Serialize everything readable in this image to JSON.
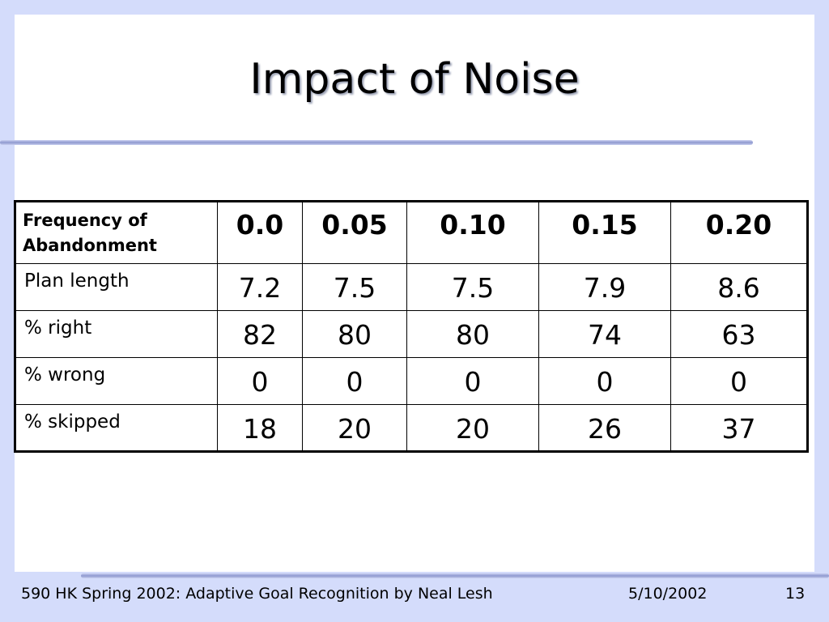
{
  "slide": {
    "title": "Impact of Noise"
  },
  "table": {
    "header_label": "Frequency of Abandonment",
    "columns": [
      "0.0",
      "0.05",
      "0.10",
      "0.15",
      "0.20"
    ],
    "rows": [
      {
        "label": "Plan length",
        "values": [
          "7.2",
          "7.5",
          "7.5",
          "7.9",
          "8.6"
        ]
      },
      {
        "label": "% right",
        "values": [
          "82",
          "80",
          "80",
          "74",
          "63"
        ]
      },
      {
        "label": "% wrong",
        "values": [
          "0",
          "0",
          "0",
          "0",
          "0"
        ]
      },
      {
        "label": "% skipped",
        "values": [
          "18",
          "20",
          "20",
          "26",
          "37"
        ]
      }
    ]
  },
  "footer": {
    "text": "590 HK Spring 2002: Adaptive Goal Recognition by Neal Lesh",
    "date": "5/10/2002",
    "page_number": "13"
  },
  "colors": {
    "page_background": "#d4dcfb",
    "slide_background": "#ffffff",
    "rule": "#8e99cf"
  }
}
